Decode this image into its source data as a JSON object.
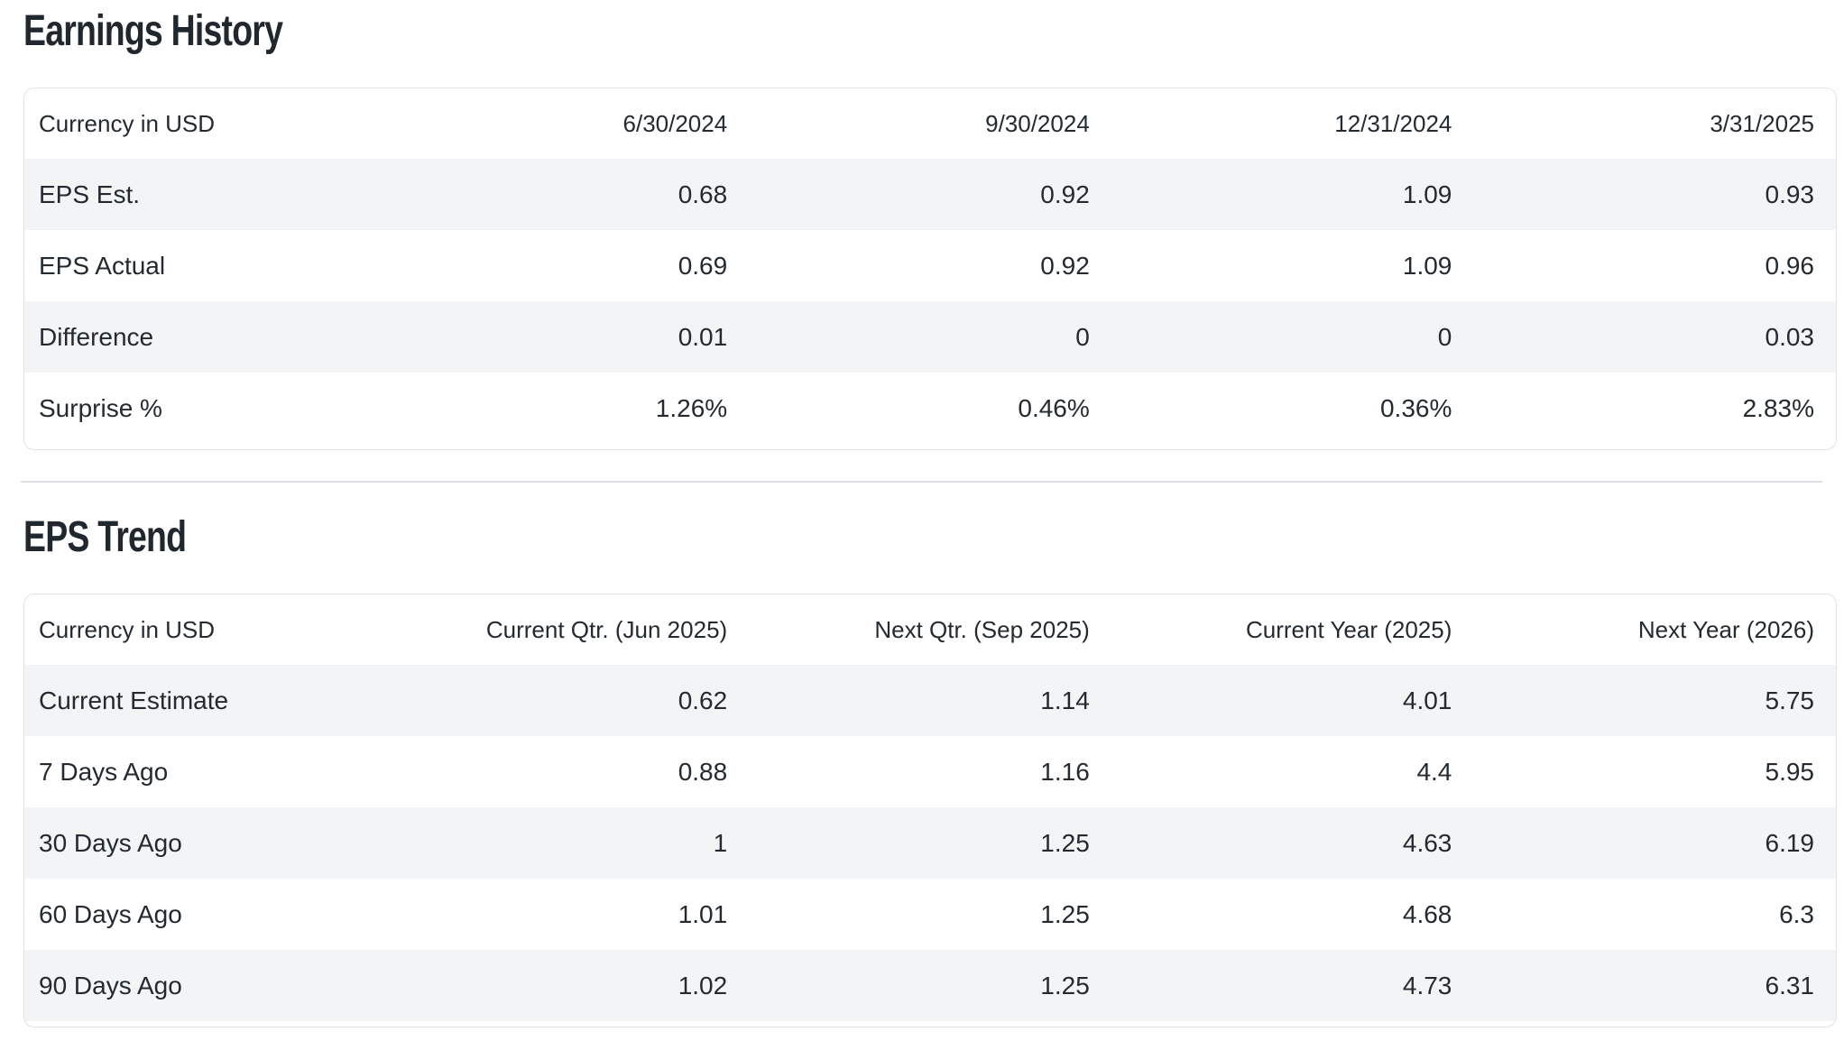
{
  "colors": {
    "background": "#ffffff",
    "text": "#232a31",
    "stripe": "#f3f4f6",
    "card_border": "#e0e3e8",
    "divider": "#dcdfe4"
  },
  "sections": [
    {
      "title": "Earnings History",
      "table": {
        "corner_label": "Currency in USD",
        "column_headers": [
          "6/30/2024",
          "9/30/2024",
          "12/31/2024",
          "3/31/2025"
        ],
        "rows": [
          {
            "label": "EPS Est.",
            "values": [
              "0.68",
              "0.92",
              "1.09",
              "0.93"
            ]
          },
          {
            "label": "EPS Actual",
            "values": [
              "0.69",
              "0.92",
              "1.09",
              "0.96"
            ]
          },
          {
            "label": "Difference",
            "values": [
              "0.01",
              "0",
              "0",
              "0.03"
            ]
          },
          {
            "label": "Surprise %",
            "values": [
              "1.26%",
              "0.46%",
              "0.36%",
              "2.83%"
            ]
          }
        ]
      }
    },
    {
      "title": "EPS Trend",
      "table": {
        "corner_label": "Currency in USD",
        "column_headers": [
          "Current Qtr. (Jun 2025)",
          "Next Qtr. (Sep 2025)",
          "Current Year (2025)",
          "Next Year (2026)"
        ],
        "rows": [
          {
            "label": "Current Estimate",
            "values": [
              "0.62",
              "1.14",
              "4.01",
              "5.75"
            ]
          },
          {
            "label": "7 Days Ago",
            "values": [
              "0.88",
              "1.16",
              "4.4",
              "5.95"
            ]
          },
          {
            "label": "30 Days Ago",
            "values": [
              "1",
              "1.25",
              "4.63",
              "6.19"
            ]
          },
          {
            "label": "60 Days Ago",
            "values": [
              "1.01",
              "1.25",
              "4.68",
              "6.3"
            ]
          },
          {
            "label": "90 Days Ago",
            "values": [
              "1.02",
              "1.25",
              "4.73",
              "6.31"
            ]
          }
        ]
      }
    }
  ]
}
